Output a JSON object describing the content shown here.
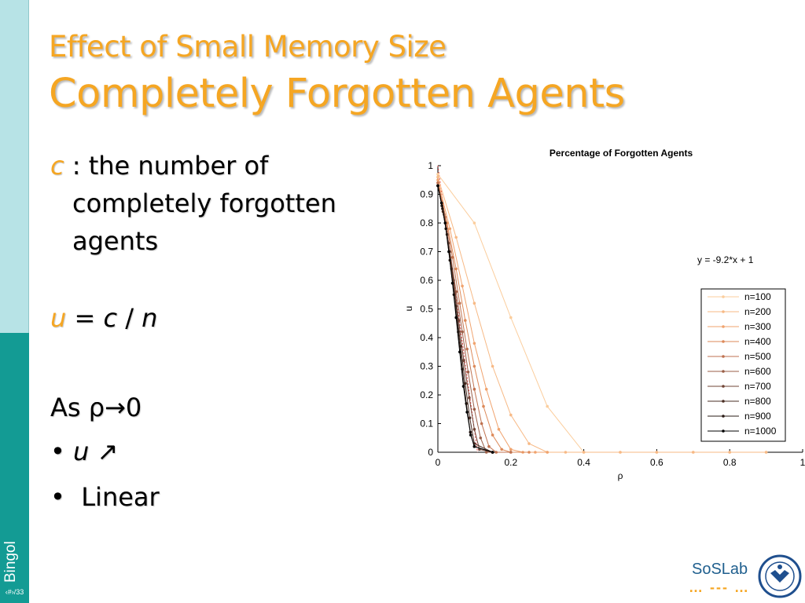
{
  "slide": {
    "title_line1": "Effect of Small Memory Size",
    "title_line2": "Completely Forgotten Agents",
    "sidebar_name": "Bingol",
    "page_indicator": "‹#›/33",
    "logo_text": "SoSLab",
    "logo_dots": "… --- …",
    "accent_color": "#f5a623",
    "sidebar_light_color": "#b7e3e6",
    "sidebar_dark_color": "#139b94"
  },
  "content": {
    "c_var": "c",
    "c_def_line1": ": the number of",
    "c_def_line2": "completely forgotten",
    "c_def_line3": "agents",
    "eq_u": "u",
    "eq_rest": "= ",
    "eq_c": "c",
    "eq_slash": " / ",
    "eq_n": "n",
    "as_rho": "As ρ→0",
    "bullet1_var": "u",
    "bullet1_arrow": "↗",
    "bullet2": "Linear",
    "bullet_symbol": "•"
  },
  "chart_data": {
    "type": "line",
    "title": "Percentage of Forgotten Agents",
    "xlabel": "ρ",
    "ylabel": "u",
    "xlim": [
      0,
      1
    ],
    "ylim": [
      0,
      1
    ],
    "xticks": [
      "0",
      "0.2",
      "0.4",
      "0.6",
      "0.8",
      "1"
    ],
    "yticks": [
      "0",
      "0.1",
      "0.2",
      "0.3",
      "0.4",
      "0.5",
      "0.6",
      "0.7",
      "0.8",
      "0.9",
      "1"
    ],
    "annotation": "y = -9.2*x + 1",
    "fit_line": {
      "x": [
        0,
        0.1087
      ],
      "y": [
        1,
        0
      ]
    },
    "legend_position": "right",
    "series": [
      {
        "name": "n=100",
        "color": "#fbcd9c",
        "x": [
          0,
          0.1,
          0.2,
          0.3,
          0.4,
          0.5,
          0.6,
          0.7,
          0.8,
          0.9
        ],
        "y": [
          0.97,
          0.8,
          0.47,
          0.16,
          0.0,
          0.0,
          0.0,
          0.0,
          0.0,
          0.0
        ]
      },
      {
        "name": "n=200",
        "color": "#f7b985",
        "x": [
          0,
          0.05,
          0.1,
          0.15,
          0.2,
          0.25,
          0.3,
          0.35,
          0.4,
          0.5,
          0.6,
          0.7,
          0.8,
          0.9
        ],
        "y": [
          0.96,
          0.75,
          0.52,
          0.3,
          0.13,
          0.03,
          0.0,
          0.0,
          0.0,
          0.0,
          0.0,
          0.0,
          0.0,
          0.0
        ]
      },
      {
        "name": "n=300",
        "color": "#f0a36e",
        "x": [
          0,
          0.033,
          0.067,
          0.1,
          0.133,
          0.167,
          0.2,
          0.233,
          0.267,
          0.3
        ],
        "y": [
          0.95,
          0.78,
          0.58,
          0.38,
          0.22,
          0.08,
          0.01,
          0.0,
          0.0,
          0.0
        ]
      },
      {
        "name": "n=400",
        "color": "#dd8a5a",
        "x": [
          0,
          0.025,
          0.05,
          0.075,
          0.1,
          0.125,
          0.15,
          0.175,
          0.2,
          0.25
        ],
        "y": [
          0.94,
          0.8,
          0.64,
          0.46,
          0.3,
          0.16,
          0.06,
          0.01,
          0.0,
          0.0
        ]
      },
      {
        "name": "n=500",
        "color": "#bf7250",
        "x": [
          0,
          0.02,
          0.04,
          0.06,
          0.08,
          0.1,
          0.12,
          0.14,
          0.16,
          0.2
        ],
        "y": [
          0.94,
          0.82,
          0.68,
          0.52,
          0.36,
          0.22,
          0.1,
          0.02,
          0.0,
          0.0
        ]
      },
      {
        "name": "n=600",
        "color": "#9a5e47",
        "x": [
          0,
          0.017,
          0.033,
          0.05,
          0.067,
          0.083,
          0.1,
          0.117,
          0.133,
          0.15
        ],
        "y": [
          0.93,
          0.83,
          0.7,
          0.56,
          0.42,
          0.28,
          0.15,
          0.05,
          0.0,
          0.0
        ]
      },
      {
        "name": "n=700",
        "color": "#714536",
        "x": [
          0,
          0.014,
          0.029,
          0.043,
          0.057,
          0.071,
          0.086,
          0.1,
          0.114,
          0.15
        ],
        "y": [
          0.93,
          0.84,
          0.73,
          0.6,
          0.46,
          0.32,
          0.19,
          0.08,
          0.01,
          0.0
        ]
      },
      {
        "name": "n=800",
        "color": "#4a2d23",
        "x": [
          0,
          0.0125,
          0.025,
          0.0375,
          0.05,
          0.0625,
          0.075,
          0.0875,
          0.1,
          0.15
        ],
        "y": [
          0.93,
          0.85,
          0.76,
          0.64,
          0.51,
          0.37,
          0.24,
          0.12,
          0.03,
          0.0
        ]
      },
      {
        "name": "n=900",
        "color": "#2a1b15",
        "x": [
          0,
          0.011,
          0.022,
          0.033,
          0.044,
          0.056,
          0.067,
          0.078,
          0.089,
          0.1,
          0.15
        ],
        "y": [
          0.93,
          0.86,
          0.78,
          0.67,
          0.55,
          0.42,
          0.29,
          0.17,
          0.07,
          0.02,
          0.0
        ]
      },
      {
        "name": "n=1000",
        "color": "#000000",
        "x": [
          0,
          0.01,
          0.02,
          0.03,
          0.04,
          0.05,
          0.06,
          0.07,
          0.08,
          0.09,
          0.1,
          0.15
        ],
        "y": [
          0.93,
          0.87,
          0.8,
          0.7,
          0.59,
          0.47,
          0.35,
          0.23,
          0.14,
          0.06,
          0.02,
          0.0
        ]
      }
    ]
  }
}
